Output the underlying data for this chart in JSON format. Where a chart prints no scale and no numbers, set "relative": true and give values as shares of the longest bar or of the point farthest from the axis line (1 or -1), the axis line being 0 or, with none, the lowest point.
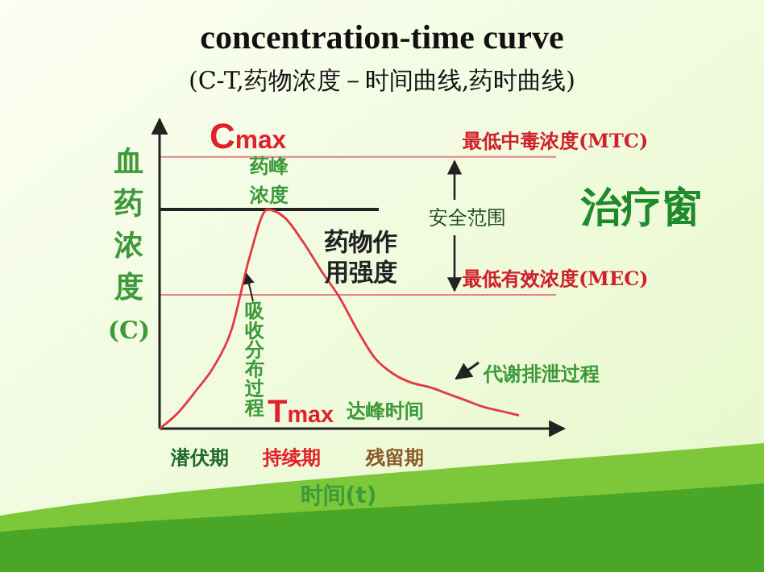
{
  "chart_data": {
    "type": "line",
    "relative": true,
    "title": "concentration-time curve",
    "subtitle": "(C-T,药物浓度－时间曲线,药时曲线)",
    "xlabel": "时间(t)",
    "ylabel": "血药浓度(C)",
    "categories": [
      null,
      null,
      null,
      null,
      null,
      null,
      null,
      null,
      null,
      null,
      null,
      null,
      null,
      null,
      null,
      null,
      null,
      null,
      null,
      null,
      null
    ],
    "series": [
      {
        "color": "#e03a44",
        "values": [
          0,
          0.07,
          0.17,
          0.28,
          0.45,
          0.78,
          1,
          0.96,
          0.85,
          0.72,
          0.6,
          0.45,
          0.32,
          0.25,
          0.21,
          0.19,
          0.16,
          0.13,
          0.1,
          0.08,
          0.06
        ]
      }
    ],
    "ref_lines": [
      {
        "axis": "y",
        "value": 1.24,
        "label": "最低中毒浓度(MTC)",
        "color": "#e8828a"
      },
      {
        "axis": "y",
        "value": 1,
        "label": "药峰浓度",
        "color": "#222222"
      },
      {
        "axis": "y",
        "value": 0.61,
        "label": "最低有效浓度(MEC)",
        "color": "#e8828a"
      }
    ],
    "annotations": [
      "Cmax",
      "药物作用强度",
      "安全范围",
      "治疗窗",
      "吸收分布过程",
      "Tmax",
      "达峰时间",
      "代谢排泄过程",
      "潜伏期",
      "持续期",
      "残留期"
    ],
    "line_style": "solid"
  }
}
